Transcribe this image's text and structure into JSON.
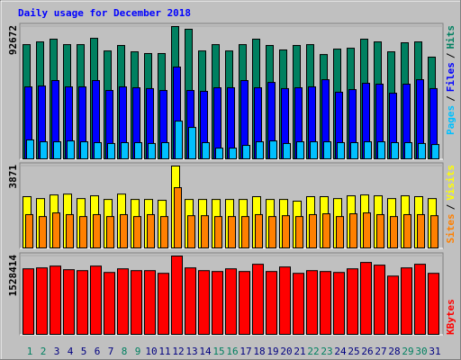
{
  "chart_data": [
    {
      "type": "bar",
      "title": "Daily usage for December 2018",
      "title_color": "#0000ff",
      "ylim": [
        0,
        92672
      ],
      "yticks": [
        92672
      ],
      "legend_separator": "/",
      "series": [
        {
          "name": "Hits",
          "color": "#008060",
          "values": [
            80100,
            82000,
            83900,
            80100,
            80100,
            84500,
            75700,
            79500,
            75100,
            73900,
            73900,
            92672,
            90800,
            75700,
            80100,
            75700,
            80100,
            83900,
            79500,
            76400,
            79500,
            80100,
            73200,
            77000,
            77600,
            83900,
            82000,
            75100,
            81400,
            82000,
            71400
          ]
        },
        {
          "name": "Files",
          "color": "#0000ff",
          "values": [
            50700,
            51300,
            55100,
            50700,
            50700,
            55100,
            48200,
            50700,
            50100,
            49500,
            48200,
            64500,
            48200,
            47600,
            50100,
            50100,
            55100,
            50100,
            53800,
            49500,
            50100,
            50700,
            55700,
            47000,
            48800,
            53200,
            52600,
            46300,
            52600,
            55700,
            49500
          ]
        },
        {
          "name": "Pages",
          "color": "#00c0ff",
          "values": [
            13800,
            12500,
            12500,
            13100,
            12500,
            11900,
            11300,
            11900,
            11900,
            11300,
            11900,
            26900,
            22500,
            11900,
            8100,
            8100,
            10000,
            12500,
            13100,
            11300,
            12500,
            12500,
            12500,
            11900,
            11900,
            12500,
            12500,
            11900,
            11900,
            11300,
            10600
          ]
        }
      ]
    },
    {
      "type": "bar",
      "ylim": [
        0,
        3871
      ],
      "yticks": [
        3871
      ],
      "legend_separator": "/",
      "series": [
        {
          "name": "Visits",
          "color": "#ffff00",
          "values": [
            2440,
            2350,
            2520,
            2560,
            2350,
            2480,
            2310,
            2560,
            2310,
            2310,
            2270,
            3871,
            2310,
            2310,
            2310,
            2310,
            2310,
            2440,
            2310,
            2310,
            2230,
            2440,
            2440,
            2350,
            2480,
            2520,
            2480,
            2350,
            2480,
            2440,
            2350
          ]
        },
        {
          "name": "Sites",
          "color": "#ff8000",
          "values": [
            1600,
            1510,
            1680,
            1600,
            1510,
            1600,
            1510,
            1600,
            1510,
            1600,
            1510,
            2860,
            1550,
            1550,
            1510,
            1510,
            1510,
            1600,
            1510,
            1550,
            1510,
            1600,
            1640,
            1510,
            1640,
            1680,
            1600,
            1510,
            1600,
            1600,
            1550
          ]
        }
      ]
    },
    {
      "type": "bar",
      "ylim": [
        0,
        1528414
      ],
      "yticks": [
        1528414
      ],
      "categories": [
        "1",
        "2",
        "3",
        "4",
        "5",
        "6",
        "7",
        "8",
        "9",
        "10",
        "11",
        "12",
        "13",
        "14",
        "15",
        "16",
        "17",
        "18",
        "19",
        "20",
        "21",
        "22",
        "23",
        "24",
        "25",
        "26",
        "27",
        "28",
        "29",
        "30",
        "31"
      ],
      "category_colors": [
        "#008060",
        "#008060",
        "#000080",
        "#000080",
        "#000080",
        "#000080",
        "#000080",
        "#008060",
        "#008060",
        "#000080",
        "#000080",
        "#000080",
        "#000080",
        "#000080",
        "#008060",
        "#008060",
        "#000080",
        "#000080",
        "#000080",
        "#000080",
        "#000080",
        "#008060",
        "#008060",
        "#000080",
        "#000080",
        "#000080",
        "#000080",
        "#000080",
        "#008060",
        "#008060",
        "#000080"
      ],
      "series": [
        {
          "name": "KBytes",
          "color": "#ff0000",
          "values": [
            1282000,
            1300000,
            1335000,
            1265000,
            1247000,
            1335000,
            1212000,
            1282000,
            1247000,
            1247000,
            1195000,
            1528414,
            1300000,
            1247000,
            1230000,
            1282000,
            1230000,
            1370000,
            1230000,
            1318000,
            1195000,
            1247000,
            1230000,
            1212000,
            1282000,
            1405000,
            1353000,
            1142000,
            1300000,
            1370000,
            1195000
          ]
        }
      ]
    }
  ]
}
